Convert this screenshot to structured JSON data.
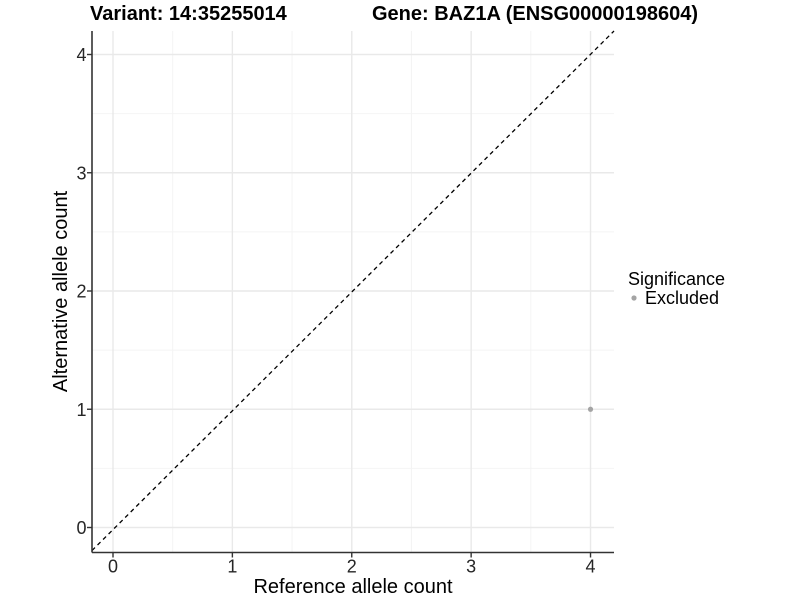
{
  "header": {
    "variant_title": "Variant: 14:35255014",
    "gene_title": "Gene: BAZ1A (ENSG00000198604)"
  },
  "axes": {
    "x_label": "Reference allele count",
    "y_label": "Alternative allele count"
  },
  "legend": {
    "title": "Significance",
    "items": [
      {
        "label": "Excluded",
        "color": "#a4a4a4"
      }
    ]
  },
  "colors": {
    "excluded_point": "#a4a4a4",
    "reference_line": "#000000",
    "axis": "#333333",
    "grid_major": "#e9e9e9",
    "grid_minor": "#f4f4f4",
    "background": "#ffffff"
  },
  "chart_data": {
    "type": "scatter",
    "title": "Variant: 14:35255014    Gene: BAZ1A (ENSG00000198604)",
    "xlabel": "Reference allele count",
    "ylabel": "Alternative allele count",
    "xlim": [
      -0.18,
      4.2
    ],
    "ylim": [
      -0.21,
      4.2
    ],
    "x_ticks": [
      0,
      1,
      2,
      3,
      4
    ],
    "y_ticks": [
      0,
      1,
      2,
      3,
      4
    ],
    "x_minor_ticks": [
      0.5,
      1.5,
      2.5,
      3.5
    ],
    "y_minor_ticks": [
      0.5,
      1.5,
      2.5,
      3.5
    ],
    "grid": true,
    "legend_position": "right",
    "legend_title": "Significance",
    "reference_line": {
      "kind": "identity y=x",
      "style": "dashed",
      "color": "#000000"
    },
    "series": [
      {
        "name": "Excluded",
        "color": "#a4a4a4",
        "points": [
          {
            "x": 4,
            "y": 1
          }
        ]
      }
    ]
  }
}
